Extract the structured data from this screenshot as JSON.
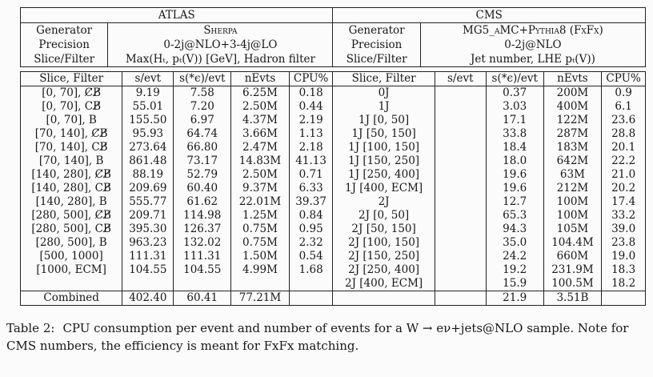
{
  "header": {
    "atlas": {
      "title": "ATLAS",
      "generator_label": "Generator",
      "generator": "Sherpa",
      "precision_label": "Precision",
      "precision": "0-2j@NLO+3-4j@LO",
      "slice_label": "Slice/Filter",
      "slice": "Max(Hₜ, pₜ(V)) [GeV], Hadron filter"
    },
    "cms": {
      "title": "CMS",
      "generator_label": "Generator",
      "generator": "MG5_aMC+Pythia8 (FxFx)",
      "precision_label": "Precision",
      "precision": "0-2j@NLO",
      "slice_label": "Slice/Filter",
      "slice": "Jet number, LHE pₜ(V))"
    }
  },
  "columns": [
    "Slice, Filter",
    "s/evt",
    "s(*ϵ)/evt",
    "nEvts",
    "CPU%"
  ],
  "rows": [
    [
      "[0, 70], C̸B̸",
      "9.19",
      "7.58",
      "6.25M",
      "0.18",
      "0J",
      "",
      "0.37",
      "200M",
      "0.9"
    ],
    [
      "[0, 70], CB̸",
      "55.01",
      "7.20",
      "2.50M",
      "0.44",
      "1J",
      "",
      "3.03",
      "400M",
      "6.1"
    ],
    [
      "[0, 70], B",
      "155.50",
      "6.97",
      "4.37M",
      "2.19",
      "1J [0, 50]",
      "",
      "17.1",
      "122M",
      "23.6"
    ],
    [
      "[70, 140], C̸B̸",
      "95.93",
      "64.74",
      "3.66M",
      "1.13",
      "1J [50, 150]",
      "",
      "33.8",
      "287M",
      "28.8"
    ],
    [
      "[70, 140], CB̸",
      "273.64",
      "66.80",
      "2.47M",
      "2.18",
      "1J [100, 150]",
      "",
      "18.4",
      "183M",
      "20.1"
    ],
    [
      "[70, 140], B",
      "861.48",
      "73.17",
      "14.83M",
      "41.13",
      "1J [150, 250]",
      "",
      "18.0",
      "642M",
      "22.2"
    ],
    [
      "[140, 280], C̸B̸",
      "88.19",
      "52.79",
      "2.50M",
      "0.71",
      "1J [250, 400]",
      "",
      "19.6",
      "63M",
      "21.0"
    ],
    [
      "[140, 280], CB̸",
      "209.69",
      "60.40",
      "9.37M",
      "6.33",
      "1J [400, ECM]",
      "",
      "19.6",
      "212M",
      "20.2"
    ],
    [
      "[140, 280], B",
      "555.77",
      "61.62",
      "22.01M",
      "39.37",
      "2J",
      "",
      "12.7",
      "100M",
      "17.4"
    ],
    [
      "[280, 500], C̸B̸",
      "209.71",
      "114.98",
      "1.25M",
      "0.84",
      "2J [0, 50]",
      "",
      "65.3",
      "100M",
      "33.2"
    ],
    [
      "[280, 500], CB̸",
      "395.30",
      "126.37",
      "0.75M",
      "0.95",
      "2J [50, 150]",
      "",
      "94.3",
      "105M",
      "39.0"
    ],
    [
      "[280, 500], B",
      "963.23",
      "132.02",
      "0.75M",
      "2.32",
      "2J [100, 150]",
      "",
      "35.0",
      "104.4M",
      "23.8"
    ],
    [
      "[500, 1000]",
      "111.31",
      "111.31",
      "1.50M",
      "0.54",
      "2J [150, 250]",
      "",
      "24.2",
      "660M",
      "19.0"
    ],
    [
      "[1000, ECM]",
      "104.55",
      "104.55",
      "4.99M",
      "1.68",
      "2J [250, 400]",
      "",
      "19.2",
      "231.9M",
      "18.3"
    ],
    [
      "",
      "",
      "",
      "",
      "",
      "2J [400, ECM]",
      "",
      "15.9",
      "100.5M",
      "18.2"
    ]
  ],
  "combined_row": [
    "Combined",
    "402.40",
    "60.41",
    "77.21M",
    "",
    "",
    "",
    "21.9",
    "3.51B",
    ""
  ],
  "caption": {
    "label": "Table 2:",
    "text": "CPU consumption per event and number of events for a W → eν+jets@NLO sample. Note for CMS numbers, the efficiency is meant for FxFx matching."
  }
}
